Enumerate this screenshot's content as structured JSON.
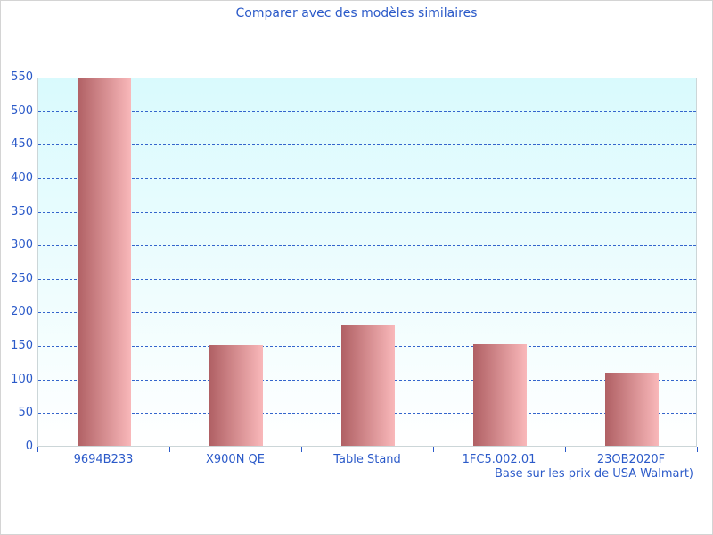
{
  "title": "Comparer avec des modèles similaires",
  "footnote": "Base sur les prix de USA Walmart)",
  "chart_data": {
    "type": "bar",
    "title": "Comparer avec des modèles similaires",
    "categories": [
      "9694B233",
      "X900N QE",
      "Table Stand",
      "1FC5.002.01",
      "23OB2020F"
    ],
    "values": [
      549,
      150,
      180,
      152,
      109
    ],
    "xlabel": "",
    "ylabel": "",
    "ylim": [
      0,
      550
    ],
    "ytick_step": 50,
    "grid": "horizontal-dashed",
    "legend_position": "none",
    "annotation": "Base sur les prix de USA Walmart)"
  },
  "colors": {
    "title_text": "#2b5ac9",
    "axis_text": "#2b5ac9",
    "gridline": "#3465cc",
    "tick": "#2b5ac9",
    "bar_gradient_left": "#b06064",
    "bar_gradient_right": "#f9b8ba",
    "plot_bg_top": "#d9fafd",
    "plot_bg_bottom": "#ffffff",
    "plot_border": "#ccd6d8",
    "page_border": "#d4d4d4",
    "page_bg": "#ffffff"
  }
}
